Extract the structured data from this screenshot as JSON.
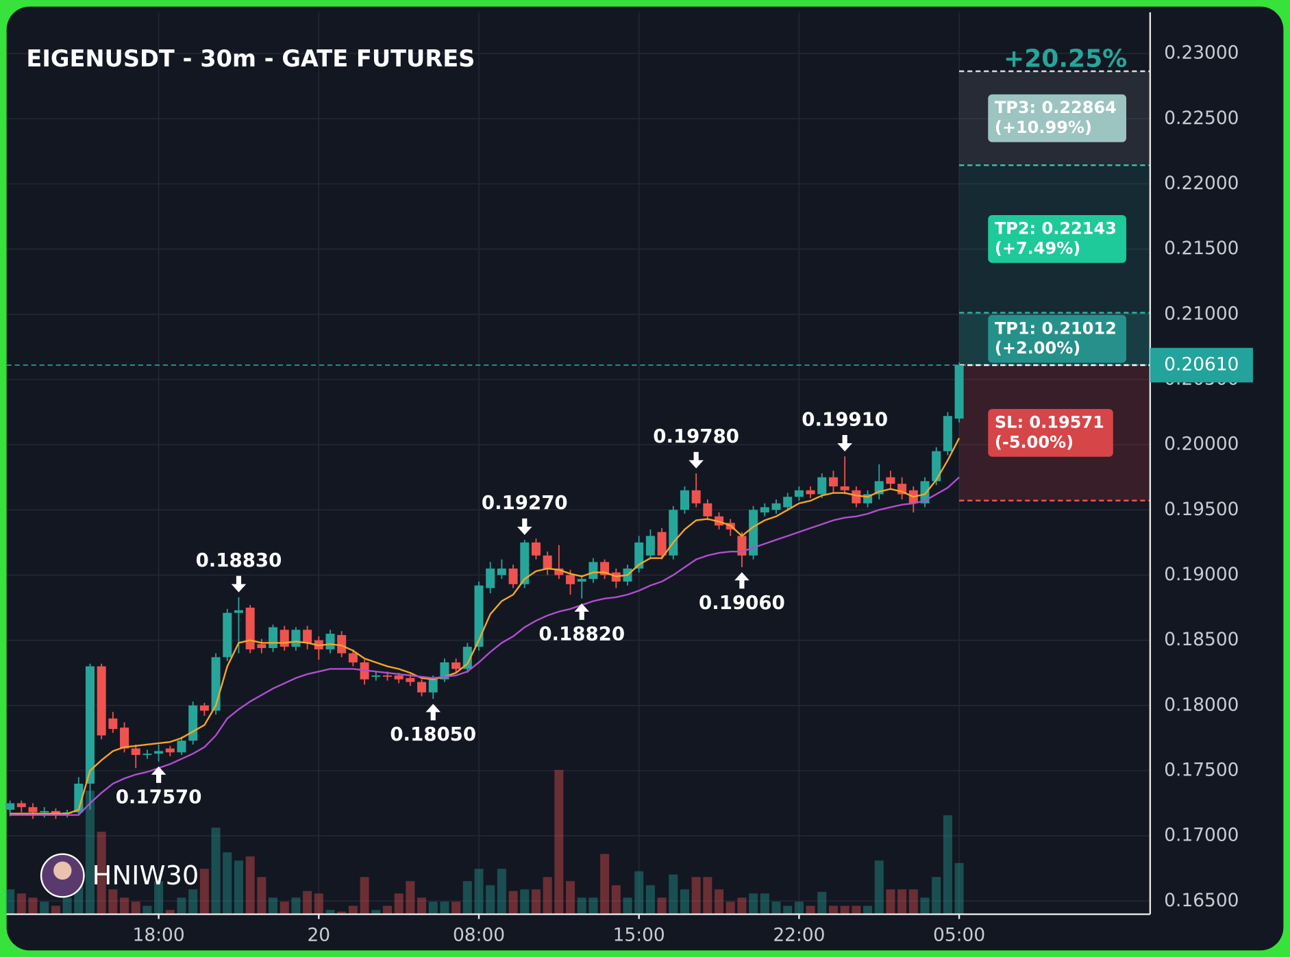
{
  "chart_data": {
    "type": "candlestick",
    "title": "EIGENUSDT - 30m - GATE FUTURES",
    "watermark": "HNIW30",
    "performance": "+20.25%",
    "ylim": [
      0.164,
      0.233
    ],
    "yticks": [
      {
        "value": 0.165,
        "label": "0.16500"
      },
      {
        "value": 0.17,
        "label": "0.17000"
      },
      {
        "value": 0.175,
        "label": "0.17500"
      },
      {
        "value": 0.18,
        "label": "0.18000"
      },
      {
        "value": 0.185,
        "label": "0.18500"
      },
      {
        "value": 0.19,
        "label": "0.19000"
      },
      {
        "value": 0.195,
        "label": "0.19500"
      },
      {
        "value": 0.2,
        "label": "0.20000"
      },
      {
        "value": 0.205,
        "label": "0.20500"
      },
      {
        "value": 0.21,
        "label": "0.21000"
      },
      {
        "value": 0.215,
        "label": "0.21500"
      },
      {
        "value": 0.22,
        "label": "0.22000"
      },
      {
        "value": 0.225,
        "label": "0.22500"
      },
      {
        "value": 0.23,
        "label": "0.23000"
      }
    ],
    "xlim": [
      -0.3,
      99.7
    ],
    "xticks": [
      {
        "value": 13,
        "label": "18:00"
      },
      {
        "value": 27,
        "label": "20"
      },
      {
        "value": 41,
        "label": "08:00"
      },
      {
        "value": 55,
        "label": "15:00"
      },
      {
        "value": 69,
        "label": "22:00"
      },
      {
        "value": 83,
        "label": "05:00"
      }
    ],
    "grid": true,
    "up_color": "#26a69a",
    "down_color": "#ef5350",
    "open": [
      0.172,
      0.1725,
      0.1722,
      0.1718,
      0.1719,
      0.1717,
      0.1718,
      0.174,
      0.183,
      0.179,
      0.1783,
      0.1767,
      0.1762,
      0.1763,
      0.1767,
      0.1764,
      0.1773,
      0.18,
      0.1796,
      0.1837,
      0.1871,
      0.1875,
      0.1847,
      0.1844,
      0.1858,
      0.1845,
      0.1858,
      0.185,
      0.1843,
      0.1854,
      0.184,
      0.1833,
      0.1822,
      0.1823,
      0.1823,
      0.1821,
      0.1818,
      0.181,
      0.182,
      0.1833,
      0.1828,
      0.1845,
      0.189,
      0.19,
      0.1905,
      0.1893,
      0.1925,
      0.1915,
      0.1905,
      0.19,
      0.1895,
      0.1897,
      0.191,
      0.1902,
      0.1895,
      0.1905,
      0.1915,
      0.1933,
      0.1915,
      0.195,
      0.1965,
      0.1955,
      0.1945,
      0.194,
      0.193,
      0.1915,
      0.1948,
      0.195,
      0.1952,
      0.196,
      0.1965,
      0.1962,
      0.1975,
      0.1968,
      0.1965,
      0.1955,
      0.1962,
      0.1975,
      0.197,
      0.1965,
      0.1955,
      0.1972,
      0.1995,
      0.202
    ],
    "high": [
      0.1727,
      0.1727,
      0.1725,
      0.1722,
      0.1721,
      0.172,
      0.1745,
      0.1832,
      0.1832,
      0.1795,
      0.1787,
      0.177,
      0.1766,
      0.177,
      0.1769,
      0.1776,
      0.1803,
      0.1802,
      0.184,
      0.1874,
      0.1883,
      0.1877,
      0.1851,
      0.1862,
      0.1861,
      0.186,
      0.1861,
      0.1853,
      0.1858,
      0.1857,
      0.1843,
      0.1835,
      0.1826,
      0.1826,
      0.1825,
      0.1824,
      0.182,
      0.1823,
      0.1836,
      0.1836,
      0.1848,
      0.1895,
      0.191,
      0.1912,
      0.1908,
      0.1927,
      0.1928,
      0.1918,
      0.1923,
      0.1904,
      0.19,
      0.1913,
      0.1912,
      0.1905,
      0.1908,
      0.193,
      0.1935,
      0.1936,
      0.1953,
      0.1968,
      0.1978,
      0.1958,
      0.1948,
      0.1943,
      0.1933,
      0.1953,
      0.1955,
      0.1958,
      0.1963,
      0.1968,
      0.1968,
      0.1978,
      0.198,
      0.1991,
      0.1968,
      0.1965,
      0.1985,
      0.198,
      0.1975,
      0.1968,
      0.1975,
      0.1998,
      0.2025,
      0.2063
    ],
    "low": [
      0.1715,
      0.1718,
      0.1713,
      0.1714,
      0.1713,
      0.1714,
      0.1716,
      0.172,
      0.1774,
      0.1779,
      0.1764,
      0.1752,
      0.1759,
      0.1757,
      0.1761,
      0.1762,
      0.177,
      0.1792,
      0.1793,
      0.1834,
      0.184,
      0.184,
      0.184,
      0.1841,
      0.1842,
      0.1842,
      0.1843,
      0.1835,
      0.184,
      0.1837,
      0.183,
      0.1816,
      0.1819,
      0.1819,
      0.1817,
      0.1815,
      0.1807,
      0.1805,
      0.1818,
      0.1825,
      0.1825,
      0.1842,
      0.1886,
      0.1897,
      0.189,
      0.189,
      0.1912,
      0.19,
      0.1897,
      0.1885,
      0.1882,
      0.1894,
      0.1897,
      0.189,
      0.1892,
      0.1902,
      0.1912,
      0.1912,
      0.1912,
      0.1947,
      0.1952,
      0.1942,
      0.1935,
      0.193,
      0.1906,
      0.1912,
      0.1945,
      0.1947,
      0.1949,
      0.1957,
      0.1959,
      0.1959,
      0.1963,
      0.1962,
      0.1952,
      0.1952,
      0.1958,
      0.1966,
      0.1958,
      0.1948,
      0.1952,
      0.1969,
      0.1992,
      0.2017
    ],
    "close": [
      0.1725,
      0.1722,
      0.1718,
      0.1719,
      0.1717,
      0.1718,
      0.174,
      0.183,
      0.1777,
      0.1782,
      0.1767,
      0.1762,
      0.1763,
      0.1765,
      0.1764,
      0.1773,
      0.18,
      0.1796,
      0.1837,
      0.1871,
      0.1873,
      0.1843,
      0.1844,
      0.186,
      0.1845,
      0.1858,
      0.1848,
      0.1843,
      0.1855,
      0.184,
      0.1833,
      0.182,
      0.1823,
      0.1822,
      0.182,
      0.1818,
      0.181,
      0.182,
      0.1833,
      0.1828,
      0.1845,
      0.1892,
      0.1905,
      0.1905,
      0.1893,
      0.1925,
      0.1915,
      0.1905,
      0.19,
      0.1893,
      0.1897,
      0.191,
      0.19,
      0.1895,
      0.1905,
      0.1925,
      0.193,
      0.1915,
      0.195,
      0.1965,
      0.1955,
      0.1945,
      0.1938,
      0.1935,
      0.1915,
      0.195,
      0.1952,
      0.1955,
      0.196,
      0.1965,
      0.1962,
      0.1975,
      0.1968,
      0.1965,
      0.1955,
      0.1962,
      0.1972,
      0.197,
      0.1962,
      0.1955,
      0.1972,
      0.1995,
      0.2022,
      0.2061
    ],
    "volume": [
      30,
      25,
      20,
      15,
      10,
      20,
      40,
      150,
      100,
      30,
      20,
      15,
      10,
      40,
      5,
      20,
      30,
      55,
      105,
      75,
      65,
      70,
      45,
      20,
      15,
      20,
      28,
      25,
      5,
      3,
      10,
      45,
      5,
      10,
      25,
      40,
      20,
      15,
      15,
      15,
      40,
      55,
      35,
      55,
      28,
      30,
      30,
      45,
      175,
      40,
      20,
      20,
      73,
      35,
      20,
      52,
      35,
      20,
      48,
      30,
      45,
      45,
      30,
      15,
      20,
      25,
      25,
      15,
      10,
      15,
      10,
      27,
      10,
      10,
      10,
      10,
      65,
      30,
      30,
      30,
      20,
      45,
      120,
      62
    ],
    "ma_lines": [
      {
        "color": "#f5a623",
        "values": [
          0.1717,
          0.1717,
          0.1717,
          0.1717,
          0.1717,
          0.1717,
          0.172,
          0.175,
          0.1758,
          0.1765,
          0.1768,
          0.1769,
          0.177,
          0.1771,
          0.1772,
          0.1775,
          0.178,
          0.1785,
          0.18,
          0.183,
          0.1848,
          0.185,
          0.1848,
          0.1848,
          0.1848,
          0.1849,
          0.1848,
          0.1846,
          0.1847,
          0.1846,
          0.1842,
          0.1836,
          0.1833,
          0.183,
          0.1828,
          0.1825,
          0.1821,
          0.182,
          0.1822,
          0.1825,
          0.1832,
          0.185,
          0.187,
          0.188,
          0.1885,
          0.1897,
          0.1903,
          0.1905,
          0.1904,
          0.1901,
          0.1899,
          0.1902,
          0.1902,
          0.1899,
          0.19,
          0.1908,
          0.1913,
          0.1913,
          0.1925,
          0.1935,
          0.1942,
          0.1943,
          0.1941,
          0.1938,
          0.193,
          0.1937,
          0.1942,
          0.1945,
          0.195,
          0.1955,
          0.1957,
          0.1961,
          0.1963,
          0.1963,
          0.1961,
          0.196,
          0.1964,
          0.1966,
          0.1964,
          0.196,
          0.1962,
          0.1973,
          0.1988,
          0.2005
        ]
      },
      {
        "color": "#b04fd0",
        "values": [
          0.1716,
          0.1716,
          0.1716,
          0.1716,
          0.1716,
          0.1716,
          0.1716,
          0.1725,
          0.1733,
          0.174,
          0.1744,
          0.1747,
          0.1749,
          0.1752,
          0.1755,
          0.1759,
          0.1763,
          0.1768,
          0.1777,
          0.179,
          0.1797,
          0.1803,
          0.1808,
          0.1813,
          0.1817,
          0.1821,
          0.1824,
          0.1826,
          0.1828,
          0.1828,
          0.1828,
          0.1827,
          0.1826,
          0.1825,
          0.1824,
          0.1823,
          0.1822,
          0.1821,
          0.1822,
          0.1823,
          0.1826,
          0.1833,
          0.1841,
          0.1848,
          0.1853,
          0.186,
          0.1865,
          0.1869,
          0.1872,
          0.1874,
          0.1877,
          0.188,
          0.1882,
          0.1883,
          0.1885,
          0.1888,
          0.1892,
          0.1895,
          0.19,
          0.1906,
          0.1912,
          0.1915,
          0.1917,
          0.1918,
          0.1918,
          0.1921,
          0.1924,
          0.1927,
          0.193,
          0.1933,
          0.1936,
          0.1939,
          0.1942,
          0.1944,
          0.1945,
          0.1947,
          0.195,
          0.1952,
          0.1954,
          0.1955,
          0.1957,
          0.1962,
          0.1967,
          0.1975
        ]
      }
    ],
    "annotations": [
      {
        "label": "0.17570",
        "value": 0.1757,
        "x": 13,
        "direction": "up"
      },
      {
        "label": "0.18830",
        "value": 0.1883,
        "x": 20,
        "direction": "down"
      },
      {
        "label": "0.18050",
        "value": 0.1805,
        "x": 37,
        "direction": "up"
      },
      {
        "label": "0.19270",
        "value": 0.1927,
        "x": 45,
        "direction": "down"
      },
      {
        "label": "0.18820",
        "value": 0.1882,
        "x": 50,
        "direction": "up"
      },
      {
        "label": "0.19780",
        "value": 0.1978,
        "x": 60,
        "direction": "down"
      },
      {
        "label": "0.19060",
        "value": 0.1906,
        "x": 64,
        "direction": "up"
      },
      {
        "label": "0.19910",
        "value": 0.1991,
        "x": 73,
        "direction": "down"
      }
    ],
    "entry": {
      "label": "0.20610",
      "value": 0.2061,
      "color": "#22a39b"
    },
    "levels": [
      {
        "label": "TP1: 0.21012",
        "change": "(+2.00%)",
        "value": 0.21012,
        "color": "#26918a",
        "line": "#2bb3a3",
        "zone": "rgba(38,166,154,0.28)"
      },
      {
        "label": "TP2: 0.22143",
        "change": "(+7.49%)",
        "value": 0.22143,
        "color": "#1ec99a",
        "line": "#2bd0b0",
        "zone": "rgba(38,166,154,0.14)"
      },
      {
        "label": "TP3: 0.22864",
        "change": "(+10.99%)",
        "value": 0.22864,
        "color": "#9cc4c1",
        "line": "#d8dde2",
        "zone": "rgba(130,136,150,0.18)"
      },
      {
        "label": "SL: 0.19571",
        "change": "(-5.00%)",
        "value": 0.19571,
        "color": "#d64548",
        "line": "#ef5350",
        "zone": "rgba(200,60,70,0.2)"
      }
    ]
  }
}
